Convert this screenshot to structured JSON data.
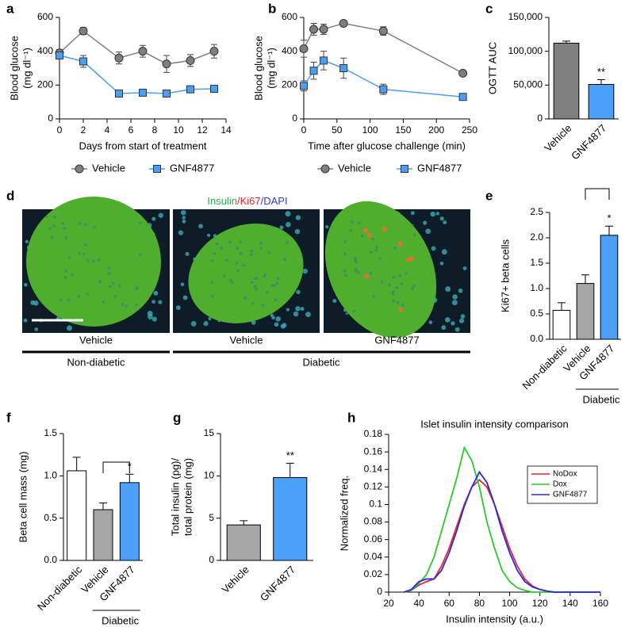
{
  "chart_data": [
    {
      "panel": "a",
      "type": "line",
      "x": [
        0,
        2,
        5,
        7,
        9,
        11,
        13
      ],
      "xlim": [
        0,
        14
      ],
      "xticks": [
        0,
        2,
        4,
        6,
        8,
        10,
        12,
        14
      ],
      "ylim": [
        0,
        600
      ],
      "yticks": [
        0,
        200,
        400,
        600
      ],
      "xlabel": "Days from start of treatment",
      "ylabel": [
        "Blood glucose",
        "(mg dl⁻¹)"
      ],
      "legend": "bottom",
      "series": [
        {
          "name": "Vehicle",
          "color": "#7f7f7f",
          "marker": "circle",
          "values": [
            390,
            520,
            360,
            400,
            325,
            345,
            400
          ],
          "errors": [
            20,
            20,
            35,
            35,
            50,
            35,
            40
          ]
        },
        {
          "name": "GNF4877",
          "color": "#4a9ef5",
          "marker": "square",
          "values": [
            375,
            340,
            150,
            155,
            150,
            175,
            178
          ],
          "errors": [
            15,
            35,
            8,
            8,
            8,
            15,
            10
          ]
        }
      ]
    },
    {
      "panel": "b",
      "type": "line",
      "x": [
        0,
        15,
        30,
        60,
        120,
        240
      ],
      "xlim": [
        0,
        250
      ],
      "xticks": [
        0,
        50,
        100,
        150,
        200,
        250
      ],
      "ylim": [
        0,
        600
      ],
      "yticks": [
        0,
        200,
        400,
        600
      ],
      "xlabel": "Time after glucose challenge (min)",
      "ylabel": [
        "Blood glucose",
        "(mg dl⁻¹)"
      ],
      "legend": "bottom",
      "series": [
        {
          "name": "Vehicle",
          "color": "#7f7f7f",
          "marker": "circle",
          "values": [
            415,
            530,
            530,
            565,
            520,
            270
          ],
          "errors": [
            50,
            35,
            30,
            15,
            25,
            10
          ]
        },
        {
          "name": "GNF4877",
          "color": "#4a9ef5",
          "marker": "square",
          "values": [
            195,
            285,
            345,
            300,
            175,
            130
          ],
          "errors": [
            30,
            50,
            55,
            60,
            30,
            10
          ]
        }
      ]
    },
    {
      "panel": "c",
      "type": "bar",
      "categories": [
        "Vehicle",
        "GNF4877"
      ],
      "values": [
        112000,
        51000
      ],
      "errors": [
        3000,
        7000
      ],
      "colors": [
        "#808080",
        "#4da0f8"
      ],
      "ylim": [
        0,
        150000
      ],
      "yticks": [
        0,
        {
          "value": 50000,
          "label": "50,000"
        },
        {
          "value": 100000,
          "label": "100,000"
        },
        {
          "value": 150000,
          "label": "150,000"
        }
      ],
      "ylabel": [
        "OGTT AUC"
      ],
      "annotation": "**"
    },
    {
      "panel": "e",
      "type": "bar",
      "categories": [
        "Non-diabetic",
        "Vehicle",
        "GNF4877"
      ],
      "values": [
        0.57,
        1.1,
        2.05
      ],
      "errors": [
        0.15,
        0.17,
        0.18
      ],
      "colors": [
        "#ffffff",
        "#a6a6a6",
        "#4da0f8"
      ],
      "ylim": [
        0,
        2.5
      ],
      "yticks": [
        {
          "value": 0,
          "label": "0.0"
        },
        {
          "value": 0.5,
          "label": "0.5"
        },
        {
          "value": 1,
          "label": "1.0"
        },
        {
          "value": 1.5,
          "label": "1.5"
        },
        {
          "value": 2,
          "label": "2.0"
        },
        {
          "value": 2.5,
          "label": "2.5"
        }
      ],
      "ylabel": [
        "Ki67+ beta cells"
      ],
      "annotation": "*",
      "group_label": "Diabetic"
    },
    {
      "panel": "f",
      "type": "bar",
      "categories": [
        "Non-diabetic",
        "Vehicle",
        "GNF4877"
      ],
      "values": [
        1.06,
        0.6,
        0.92
      ],
      "errors": [
        0.16,
        0.08,
        0.1
      ],
      "colors": [
        "#ffffff",
        "#a6a6a6",
        "#4da0f8"
      ],
      "ylim": [
        0,
        1.5
      ],
      "yticks": [
        {
          "value": 0,
          "label": "0.0"
        },
        {
          "value": 0.5,
          "label": "0.5"
        },
        {
          "value": 1,
          "label": "1.0"
        },
        {
          "value": 1.5,
          "label": "1.5"
        }
      ],
      "ylabel": [
        "Beta cell mass (mg)"
      ],
      "annotation": "*",
      "group_label": "Diabetic"
    },
    {
      "panel": "g",
      "type": "bar",
      "categories": [
        "Vehicle",
        "GNF4877"
      ],
      "values": [
        4.2,
        9.8
      ],
      "errors": [
        0.5,
        1.7
      ],
      "colors": [
        "#a6a6a6",
        "#4da0f8"
      ],
      "ylim": [
        0,
        15
      ],
      "yticks": [
        0,
        5,
        10,
        15
      ],
      "ylabel": [
        "Total insulin (pg)/",
        "total protein (mg)"
      ],
      "annotation": "**"
    },
    {
      "panel": "h",
      "type": "line",
      "title": "Islet insulin intensity comparison",
      "x": [
        30,
        35,
        40,
        45,
        50,
        55,
        60,
        65,
        70,
        75,
        80,
        85,
        90,
        95,
        100,
        105,
        110,
        115,
        120,
        125,
        130,
        135,
        140,
        150,
        160
      ],
      "xlim": [
        20,
        160
      ],
      "xticks": [
        20,
        40,
        60,
        80,
        100,
        120,
        140,
        160
      ],
      "ylim": [
        0,
        0.18
      ],
      "yticks": [
        0,
        0.02,
        0.04,
        0.06,
        0.08,
        0.1,
        0.12,
        0.14,
        0.16,
        0.18
      ],
      "xlabel": "Insulin intensity (a.u.)",
      "ylabel": [
        "Normalized freq."
      ],
      "legend": "upper right",
      "series": [
        {
          "name": "NoDox",
          "color": "#e8272a",
          "values": [
            0,
            0.002,
            0.008,
            0.012,
            0.015,
            0.03,
            0.05,
            0.075,
            0.1,
            0.12,
            0.128,
            0.12,
            0.1,
            0.075,
            0.05,
            0.03,
            0.015,
            0.007,
            0.003,
            0.001,
            0,
            0,
            0,
            0,
            0
          ]
        },
        {
          "name": "Dox",
          "color": "#2ec82e",
          "values": [
            0,
            0.002,
            0.01,
            0.02,
            0.04,
            0.07,
            0.1,
            0.13,
            0.165,
            0.15,
            0.12,
            0.08,
            0.05,
            0.025,
            0.012,
            0.005,
            0.002,
            0,
            0,
            0,
            0,
            0,
            0,
            0,
            0
          ]
        },
        {
          "name": "GNF4877",
          "color": "#2a2ae0",
          "values": [
            0,
            0.003,
            0.012,
            0.015,
            0.015,
            0.025,
            0.045,
            0.07,
            0.098,
            0.12,
            0.137,
            0.125,
            0.1,
            0.07,
            0.045,
            0.025,
            0.012,
            0.006,
            0.003,
            0.001,
            0,
            0,
            0,
            0,
            0
          ]
        }
      ]
    }
  ],
  "panel_d": {
    "panel": "d",
    "stain": [
      {
        "text": "Insulin",
        "color": "#22b04a"
      },
      {
        "text": "/Ki67",
        "color": "#e02424"
      },
      {
        "text": "/DAPI",
        "color": "#2a3fc7"
      }
    ],
    "image_labels": [
      "Vehicle",
      "Vehicle",
      "GNF4877"
    ],
    "groups": [
      "Non-diabetic",
      "Diabetic"
    ]
  }
}
